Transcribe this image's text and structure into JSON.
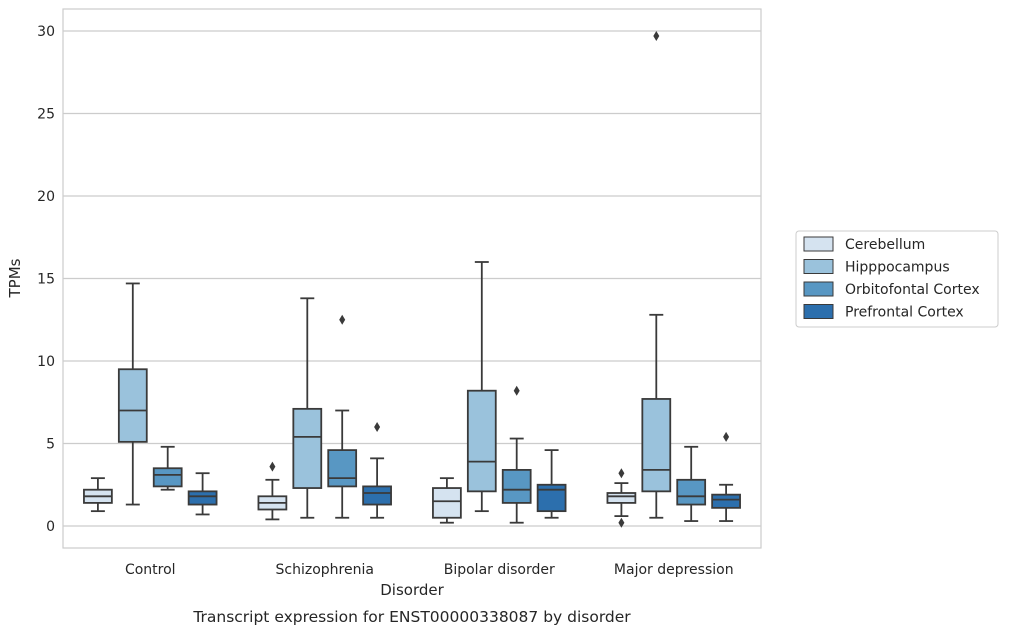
{
  "chart_data": {
    "type": "box",
    "caption": "Transcript expression for ENST00000338087 by disorder",
    "xlabel": "Disorder",
    "ylabel": "TPMs",
    "ylim": [
      -1.3,
      31.3
    ],
    "yticks": [
      0,
      5,
      10,
      15,
      20,
      25,
      30
    ],
    "grid": "horizontal",
    "legend_position": "right",
    "categories": [
      "Control",
      "Schizophrenia",
      "Bipolar disorder",
      "Major depression"
    ],
    "series": [
      {
        "name": "Cerebellum",
        "color": "#d5e3f0",
        "boxes": [
          {
            "whisker_low": 0.9,
            "q1": 1.4,
            "median": 1.8,
            "q3": 2.2,
            "whisker_high": 2.9,
            "outliers": []
          },
          {
            "whisker_low": 0.4,
            "q1": 1.0,
            "median": 1.4,
            "q3": 1.8,
            "whisker_high": 2.8,
            "outliers": [
              3.6
            ]
          },
          {
            "whisker_low": 0.2,
            "q1": 0.5,
            "median": 1.5,
            "q3": 2.3,
            "whisker_high": 2.9,
            "outliers": []
          },
          {
            "whisker_low": 0.6,
            "q1": 1.4,
            "median": 1.8,
            "q3": 2.0,
            "whisker_high": 2.6,
            "outliers": [
              3.2,
              0.2
            ]
          }
        ]
      },
      {
        "name": "Hipppocampus",
        "color": "#9ac2dc",
        "boxes": [
          {
            "whisker_low": 1.3,
            "q1": 5.1,
            "median": 7.0,
            "q3": 9.5,
            "whisker_high": 14.7,
            "outliers": []
          },
          {
            "whisker_low": 0.5,
            "q1": 2.3,
            "median": 5.4,
            "q3": 7.1,
            "whisker_high": 13.8,
            "outliers": []
          },
          {
            "whisker_low": 0.9,
            "q1": 2.1,
            "median": 3.9,
            "q3": 8.2,
            "whisker_high": 16.0,
            "outliers": []
          },
          {
            "whisker_low": 0.5,
            "q1": 2.1,
            "median": 3.4,
            "q3": 7.7,
            "whisker_high": 12.8,
            "outliers": [
              29.7
            ]
          }
        ]
      },
      {
        "name": "Orbitofontal Cortex",
        "color": "#5897c3",
        "boxes": [
          {
            "whisker_low": 2.2,
            "q1": 2.4,
            "median": 3.1,
            "q3": 3.5,
            "whisker_high": 4.8,
            "outliers": []
          },
          {
            "whisker_low": 0.5,
            "q1": 2.4,
            "median": 2.9,
            "q3": 4.6,
            "whisker_high": 7.0,
            "outliers": [
              12.5
            ]
          },
          {
            "whisker_low": 0.2,
            "q1": 1.4,
            "median": 2.2,
            "q3": 3.4,
            "whisker_high": 5.3,
            "outliers": [
              8.2
            ]
          },
          {
            "whisker_low": 0.3,
            "q1": 1.3,
            "median": 1.8,
            "q3": 2.8,
            "whisker_high": 4.8,
            "outliers": []
          }
        ]
      },
      {
        "name": "Prefrontal Cortex",
        "color": "#2c6fad",
        "boxes": [
          {
            "whisker_low": 0.7,
            "q1": 1.3,
            "median": 1.8,
            "q3": 2.1,
            "whisker_high": 3.2,
            "outliers": []
          },
          {
            "whisker_low": 0.5,
            "q1": 1.3,
            "median": 2.0,
            "q3": 2.4,
            "whisker_high": 4.1,
            "outliers": [
              6.0
            ]
          },
          {
            "whisker_low": 0.5,
            "q1": 0.9,
            "median": 2.2,
            "q3": 2.5,
            "whisker_high": 4.6,
            "outliers": []
          },
          {
            "whisker_low": 0.3,
            "q1": 1.1,
            "median": 1.6,
            "q3": 1.9,
            "whisker_high": 2.5,
            "outliers": [
              5.4
            ]
          }
        ]
      }
    ]
  }
}
